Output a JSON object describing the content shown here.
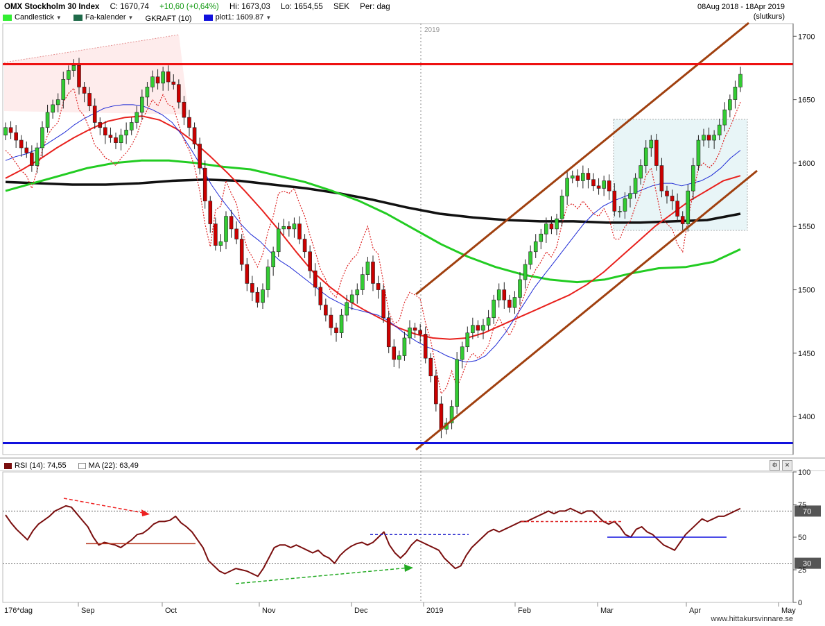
{
  "header": {
    "title": "OMX Stockholm 30 Index",
    "close": "C: 1670,74",
    "change": "+10,60 (+0,64%)",
    "high": "Hi: 1673,03",
    "low": "Lo: 1654,55",
    "currency": "SEK",
    "period": "Per: dag",
    "date_range": "08Aug 2018 - 18Apr 2019",
    "price_type": "(slutkurs)"
  },
  "legend": {
    "candlestick": "Candlestick",
    "fa_kalender": "Fa-kalender",
    "gkraft": "GKRAFT (10)",
    "plot1": "plot1: 1609.87"
  },
  "rsi_legend": {
    "rsi": "RSI (14): 74,55",
    "ma": "MA (22): 63,49"
  },
  "footer": {
    "period_label": "176*dag",
    "watermark": "www.hittakursvinnare.se"
  },
  "colors": {
    "up": "#33cc33",
    "down": "#cc0000",
    "ma_fast": "#1f2bd6",
    "ma_mid": "#e8201c",
    "ma_long": "#22cc22",
    "ma_200": "#111111",
    "channel": "#a0400f",
    "resistance": "#ee1111",
    "support": "#1111dd",
    "rsi": "#7a0e0e"
  },
  "chart_data": [
    {
      "type": "candlestick",
      "title": "OMX Stockholm 30 Index",
      "y_ticks": [
        1400,
        1450,
        1500,
        1550,
        1600,
        1650,
        1700
      ],
      "ylim": [
        1370,
        1710
      ],
      "x_ticks": [
        "Sep",
        "Oct",
        "Nov",
        "Dec",
        "2019",
        "Feb",
        "Mar",
        "Apr",
        "May"
      ],
      "year_marker": "2019",
      "horizontal_lines": {
        "resistance": 1678,
        "support": 1379
      },
      "close_series": [
        1628,
        1624,
        1618,
        1612,
        1608,
        1598,
        1612,
        1628,
        1640,
        1646,
        1650,
        1666,
        1673,
        1677,
        1660,
        1655,
        1645,
        1632,
        1628,
        1622,
        1620,
        1616,
        1622,
        1626,
        1632,
        1640,
        1652,
        1660,
        1668,
        1663,
        1672,
        1664,
        1662,
        1648,
        1636,
        1628,
        1615,
        1596,
        1570,
        1552,
        1535,
        1538,
        1558,
        1548,
        1540,
        1520,
        1505,
        1498,
        1490,
        1500,
        1518,
        1530,
        1548,
        1550,
        1548,
        1552,
        1540,
        1530,
        1515,
        1502,
        1488,
        1480,
        1470,
        1466,
        1480,
        1490,
        1496,
        1500,
        1512,
        1522,
        1505,
        1500,
        1478,
        1455,
        1445,
        1448,
        1462,
        1470,
        1468,
        1465,
        1446,
        1432,
        1410,
        1390,
        1395,
        1408,
        1445,
        1455,
        1466,
        1472,
        1468,
        1472,
        1478,
        1492,
        1500,
        1492,
        1486,
        1494,
        1508,
        1520,
        1530,
        1538,
        1544,
        1552,
        1548,
        1556,
        1574,
        1588,
        1590,
        1586,
        1592,
        1587,
        1582,
        1580,
        1586,
        1578,
        1562,
        1562,
        1572,
        1576,
        1588,
        1598,
        1612,
        1618,
        1598,
        1578,
        1574,
        1570,
        1558,
        1552,
        1578,
        1598,
        1618,
        1622,
        1618,
        1622,
        1630,
        1642,
        1650,
        1660,
        1670
      ],
      "ma_fast": [
        1602,
        1605,
        1607,
        1610,
        1614,
        1619,
        1624,
        1630,
        1635,
        1639,
        1643,
        1645,
        1646,
        1646,
        1645,
        1642,
        1638,
        1632,
        1622,
        1610,
        1597,
        1583,
        1572,
        1562,
        1552,
        1544,
        1538,
        1530,
        1523,
        1518,
        1512,
        1506,
        1500,
        1494,
        1490,
        1486,
        1484,
        1482,
        1480,
        1476,
        1470,
        1464,
        1459,
        1455,
        1452,
        1448,
        1445,
        1443,
        1444,
        1448,
        1456,
        1466,
        1478,
        1490,
        1502,
        1512,
        1522,
        1532,
        1542,
        1552,
        1560,
        1566,
        1570,
        1573,
        1576,
        1579,
        1582,
        1584,
        1584,
        1582,
        1584,
        1586,
        1590,
        1596,
        1604,
        1610
      ],
      "ma_mid": [
        1588,
        1595,
        1603,
        1612,
        1620,
        1627,
        1633,
        1636,
        1637,
        1634,
        1627,
        1617,
        1605,
        1592,
        1578,
        1563,
        1547,
        1530,
        1514,
        1502,
        1492,
        1484,
        1477,
        1470,
        1465,
        1462,
        1461,
        1462,
        1466,
        1472,
        1478,
        1484,
        1490,
        1496,
        1504,
        1514,
        1526,
        1538,
        1550,
        1560,
        1570,
        1578,
        1586,
        1590
      ],
      "ma_long": [
        1578,
        1584,
        1590,
        1596,
        1600,
        1602,
        1602,
        1600,
        1597,
        1595,
        1590,
        1585,
        1578,
        1570,
        1560,
        1548,
        1536,
        1526,
        1518,
        1512,
        1508,
        1506,
        1508,
        1513,
        1517,
        1518,
        1522,
        1532
      ],
      "ma_200": [
        1585,
        1584,
        1583,
        1583,
        1584,
        1586,
        1587,
        1586,
        1583,
        1580,
        1576,
        1571,
        1565,
        1560,
        1557,
        1555,
        1554,
        1554,
        1553,
        1553,
        1554,
        1555,
        1560
      ]
    },
    {
      "type": "line",
      "title": "RSI (14)",
      "ylim": [
        0,
        100
      ],
      "y_ticks": [
        0,
        25,
        50,
        75,
        100
      ],
      "reference_levels": [
        30,
        70
      ],
      "rsi_values": [
        67,
        61,
        56,
        52,
        48,
        55,
        60,
        63,
        66,
        70,
        72,
        74,
        73,
        68,
        63,
        58,
        50,
        44,
        46,
        45,
        44,
        42,
        45,
        48,
        52,
        53,
        56,
        60,
        62,
        62,
        63,
        66,
        61,
        58,
        54,
        48,
        42,
        32,
        28,
        24,
        22,
        24,
        26,
        25,
        24,
        22,
        20,
        26,
        34,
        42,
        44,
        44,
        42,
        44,
        42,
        40,
        38,
        40,
        36,
        34,
        30,
        36,
        40,
        43,
        45,
        46,
        44,
        46,
        50,
        54,
        44,
        38,
        34,
        38,
        44,
        48,
        46,
        44,
        42,
        40,
        34,
        30,
        26,
        28,
        36,
        42,
        46,
        50,
        54,
        56,
        54,
        56,
        58,
        60,
        62,
        62,
        64,
        66,
        68,
        70,
        68,
        70,
        70,
        72,
        70,
        68,
        70,
        70,
        66,
        62,
        60,
        62,
        58,
        52,
        50,
        56,
        58,
        54,
        52,
        48,
        44,
        42,
        40,
        46,
        52,
        56,
        60,
        64,
        62,
        64,
        66,
        66,
        68,
        70,
        72
      ]
    }
  ]
}
